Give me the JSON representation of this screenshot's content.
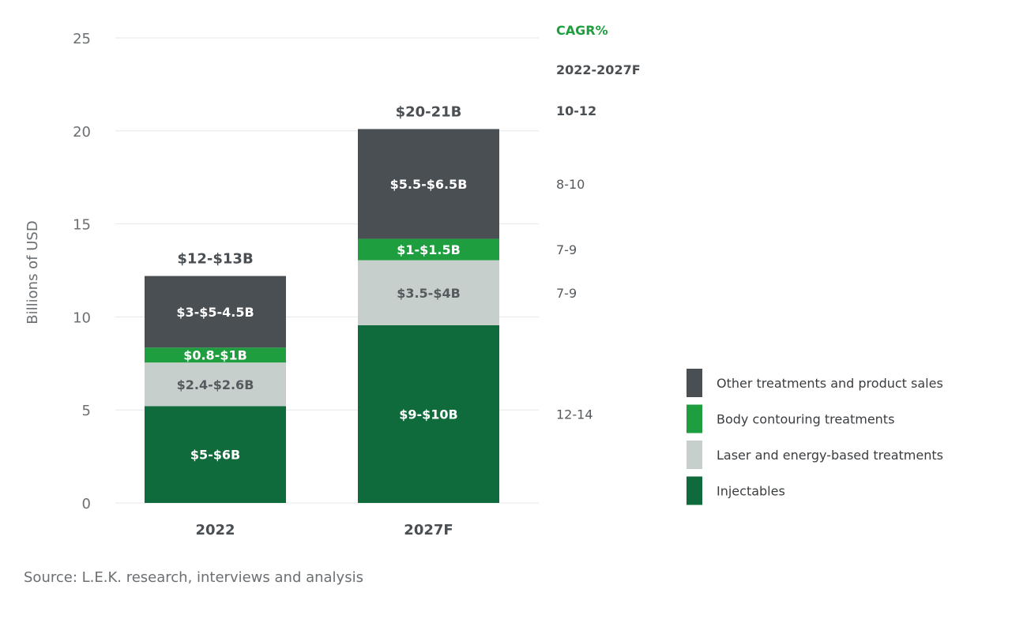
{
  "chart_data": {
    "type": "bar",
    "stacked": true,
    "ylabel": "Billions of USD",
    "ylim": [
      0,
      25
    ],
    "yticks": [
      0,
      5,
      10,
      15,
      20,
      25
    ],
    "grid": true,
    "legend_position": "right",
    "categories": [
      "2022",
      "2027F"
    ],
    "totals": [
      "$12-$13B",
      "$20-21B"
    ],
    "series": [
      {
        "name": "Injectables",
        "color": "#0f6b3c",
        "label_color": "#ffffff",
        "values": [
          5.2,
          9.55
        ],
        "labels": [
          "$5-$6B",
          "$9-$10B"
        ],
        "cagr": "12-14"
      },
      {
        "name": "Laser and energy-based treatments",
        "color": "#c6cfcb",
        "label_color": "#555a5e",
        "values": [
          2.35,
          3.5
        ],
        "labels": [
          "$2.4-$2.6B",
          "$3.5-$4B"
        ],
        "cagr": "7-9"
      },
      {
        "name": "Body contouring treatments",
        "color": "#1e9e3e",
        "label_color": "#ffffff",
        "values": [
          0.8,
          1.15
        ],
        "labels": [
          "$0.8-$1B",
          "$1-$1.5B"
        ],
        "cagr": "7-9"
      },
      {
        "name": "Other treatments and product sales",
        "color": "#4a4f54",
        "label_color": "#ffffff",
        "values": [
          3.85,
          5.9
        ],
        "labels": [
          "$3-$5-4.5B",
          "$5.5-$6.5B"
        ],
        "cagr": "8-10"
      }
    ],
    "cagr_header": "CAGR%",
    "cagr_period": "2022-2027F",
    "cagr_total": "10-12",
    "cagr_header_color": "#1e9e3e",
    "source": "Source: L.E.K. research, interviews and analysis"
  }
}
